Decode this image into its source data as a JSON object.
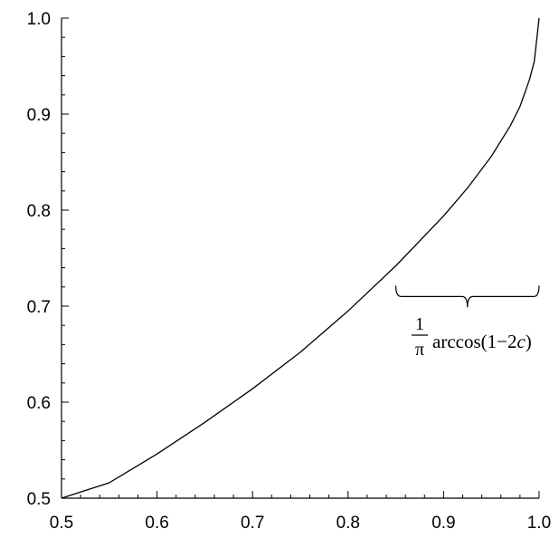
{
  "chart_data": {
    "type": "line",
    "title": "",
    "xlabel": "",
    "ylabel": "",
    "xlim": [
      0.5,
      1.0
    ],
    "ylim": [
      0.5,
      1.0
    ],
    "grid": false,
    "x_ticks": [
      "0.5",
      "0.6",
      "0.7",
      "0.8",
      "0.9",
      "1.0"
    ],
    "y_ticks": [
      "0.5",
      "0.6",
      "0.7",
      "0.8",
      "0.9",
      "1.0"
    ],
    "series": [
      {
        "x": [
          0.5,
          0.55,
          0.6,
          0.65,
          0.7,
          0.75,
          0.8,
          0.85,
          0.9,
          0.925,
          0.95,
          0.97,
          0.98,
          0.99,
          0.995,
          1.0
        ],
        "y": [
          0.5,
          0.516,
          0.546,
          0.579,
          0.614,
          0.652,
          0.695,
          0.742,
          0.794,
          0.823,
          0.856,
          0.888,
          0.908,
          0.936,
          0.955,
          1.0
        ]
      }
    ],
    "annotation": {
      "type": "brace",
      "x_from": 0.85,
      "x_to": 1.0,
      "y": 0.71,
      "label": {
        "numerator": "1",
        "denominator": "π",
        "expression_prefix": "arccos(1−2",
        "expression_variable": "c",
        "expression_suffix": ")"
      }
    },
    "colors": {
      "line": "#000000",
      "axes": "#000000"
    }
  }
}
